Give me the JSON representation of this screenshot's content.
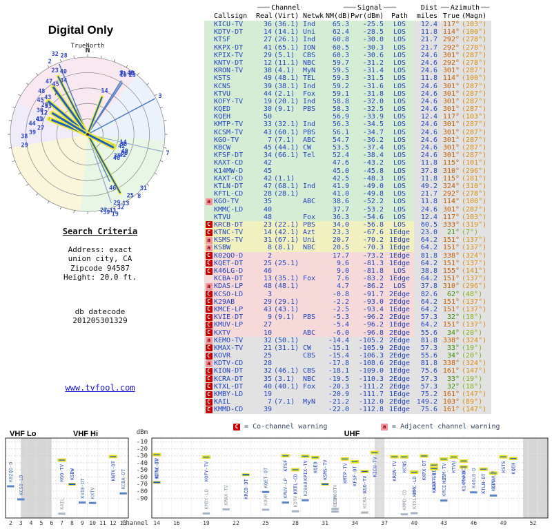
{
  "title": "Digital Only",
  "radar": {
    "true_north": "TrueNorth"
  },
  "criteria": {
    "heading": "Search Criteria",
    "lines": [
      "Address: exact",
      "union city, CA",
      "Zipcode 94587",
      "Height: 20.0 ft."
    ],
    "datecode_label": "db datecode",
    "datecode": "201205301329"
  },
  "link": "www.tvfool.com",
  "legend": {
    "co_badge": "C",
    "co_text": "= Co-channel warning",
    "adj_badge": "a",
    "adj_text": "= Adjacent channel warning"
  },
  "table": {
    "group_channel": "Channel",
    "group_signal": "Signal",
    "group_dist": "Dist",
    "group_azimuth": "Azimuth",
    "deco_l": "━━━",
    "deco_s": "━━",
    "col_callsign": "Callsign",
    "col_real": "Real",
    "col_virt": "(Virt)",
    "col_netwk": "Netwk",
    "col_nm": "NM(dB)",
    "col_pwr": "Pwr(dBm)",
    "col_path": "Path",
    "col_miles": "miles",
    "col_true": "True",
    "col_magn": "(Magn)"
  },
  "colors": {
    "tiers": {
      "green": "#d4edd4",
      "yellow": "#f1f1c0",
      "pink": "#f6d9d9",
      "gray": "#e2e2e2"
    },
    "dist_bg": "#e2e2e2",
    "co": "#c80000",
    "adj": "#f2959b",
    "value_blue": "#2343bd",
    "az_true_orange": "#c45e00",
    "az_magn_orange": "#d89018",
    "az_true_green": "#3f8f00",
    "az_magn_green": "#84b31e"
  },
  "chart_data": [
    {
      "type": "scatter",
      "subtype": "polar-azimuth-radar",
      "title": "Digital Only",
      "north_label": "N",
      "orientation": "TrueNorth",
      "rings": 5,
      "max_miles": 85,
      "radius_encoding": "sqrt(distance miles)",
      "angle_encoding": "true azimuth degrees",
      "label_encoding": "real channel number"
    },
    {
      "type": "table",
      "row_fields": [
        "warning",
        "callsign",
        "real_ch",
        "virtual_ch",
        "network",
        "nm_db",
        "pwr_dbm",
        "path",
        "dist_miles",
        "az_true_deg",
        "az_magn_deg",
        "tier"
      ],
      "rows": [
        [
          "",
          "KICU-TV",
          "36",
          "36.1",
          "Ind",
          65.3,
          -25.5,
          "LOS",
          12.4,
          117,
          103,
          "green"
        ],
        [
          "",
          "KDTV-DT",
          "14",
          "14.1",
          "Uni",
          62.4,
          -28.5,
          "LOS",
          11.8,
          114,
          100,
          "green"
        ],
        [
          "",
          "KTSF",
          "27",
          "26.1",
          "Ind",
          60.8,
          -30.0,
          "LOS",
          21.7,
          292,
          278,
          "green"
        ],
        [
          "",
          "KKPX-DT",
          "41",
          "65.1",
          "ION",
          60.5,
          -30.3,
          "LOS",
          21.7,
          292,
          278,
          "green"
        ],
        [
          "",
          "KPIX-TV",
          "29",
          "5.1",
          "CBS",
          60.3,
          -30.6,
          "LOS",
          24.6,
          301,
          287,
          "green"
        ],
        [
          "",
          "KNTV-DT",
          "12",
          "11.1",
          "NBC",
          59.7,
          -31.2,
          "LOS",
          24.6,
          292,
          278,
          "green"
        ],
        [
          "",
          "KRON-TV",
          "38",
          "4.1",
          "MyN",
          59.5,
          -31.4,
          "LOS",
          24.6,
          301,
          287,
          "green"
        ],
        [
          "",
          "KSTS",
          "49",
          "48.1",
          "TEL",
          59.3,
          -31.5,
          "LOS",
          11.8,
          114,
          100,
          "green"
        ],
        [
          "",
          "KCNS",
          "39",
          "38.1",
          "Ind",
          59.2,
          -31.6,
          "LOS",
          24.6,
          301,
          287,
          "green"
        ],
        [
          "",
          "KTVU",
          "44",
          "2.1",
          "Fox",
          59.1,
          -31.8,
          "LOS",
          24.6,
          301,
          287,
          "green"
        ],
        [
          "",
          "KOFY-TV",
          "19",
          "20.1",
          "Ind",
          58.8,
          -32.0,
          "LOS",
          24.6,
          301,
          287,
          "green"
        ],
        [
          "",
          "KQED",
          "30",
          "9.1",
          "PBS",
          58.3,
          -32.5,
          "LOS",
          24.6,
          301,
          287,
          "green"
        ],
        [
          "",
          "KQEH",
          "50",
          "",
          "",
          56.9,
          -33.9,
          "LOS",
          12.4,
          117,
          103,
          "green"
        ],
        [
          "",
          "KMTP-TV",
          "33",
          "32.1",
          "Ind",
          56.3,
          -34.5,
          "LOS",
          24.6,
          301,
          287,
          "green"
        ],
        [
          "",
          "KCSM-TV",
          "43",
          "60.1",
          "PBS",
          56.1,
          -34.7,
          "LOS",
          24.6,
          301,
          287,
          "green"
        ],
        [
          "",
          "KGO-TV",
          "7",
          "7.1",
          "ABC",
          54.7,
          -36.2,
          "LOS",
          24.6,
          301,
          287,
          "green"
        ],
        [
          "",
          "KBCW",
          "45",
          "44.1",
          "CW",
          53.5,
          -37.4,
          "LOS",
          24.6,
          301,
          287,
          "green"
        ],
        [
          "",
          "KFSF-DT",
          "34",
          "66.1",
          "Tel",
          52.4,
          -38.4,
          "LOS",
          24.6,
          301,
          287,
          "green"
        ],
        [
          "",
          "KAXT-CD",
          "42",
          "",
          "",
          47.6,
          -43.2,
          "LOS",
          11.8,
          115,
          101,
          "green"
        ],
        [
          "",
          "K14MW-D",
          "45",
          "",
          "",
          45.0,
          -45.8,
          "LOS",
          37.8,
          310,
          296,
          "green"
        ],
        [
          "",
          "KAXT-CD",
          "42",
          "1.1",
          "",
          42.5,
          -48.3,
          "LOS",
          11.8,
          115,
          101,
          "green"
        ],
        [
          "",
          "KTLN-DT",
          "47",
          "68.1",
          "Ind",
          41.9,
          -49.0,
          "LOS",
          49.2,
          324,
          310,
          "green"
        ],
        [
          "",
          "KFTL-CD",
          "28",
          "28.1",
          "",
          41.0,
          -49.8,
          "LOS",
          21.7,
          292,
          278,
          "green"
        ],
        [
          "a",
          "KGO-TV",
          "35",
          "",
          "ABC",
          38.6,
          -52.2,
          "LOS",
          11.8,
          114,
          100,
          "green"
        ],
        [
          "",
          "KMMC-LD",
          "40",
          "",
          "",
          37.7,
          -53.2,
          "LOS",
          24.6,
          301,
          287,
          "green"
        ],
        [
          "",
          "KTVU",
          "48",
          "",
          "Fox",
          36.3,
          -54.6,
          "LOS",
          12.4,
          117,
          103,
          "green"
        ],
        [
          "C",
          "KRCB-DT",
          "23",
          "22.1",
          "PBS",
          34.0,
          -56.8,
          "LOS",
          60.5,
          333,
          319,
          "yellow"
        ],
        [
          "C",
          "KTNC-TV",
          "14",
          "42.1",
          "Azt",
          23.3,
          -67.6,
          "1Edge",
          23.0,
          21,
          7,
          "yellow"
        ],
        [
          "a",
          "KSMS-TV",
          "31",
          "67.1",
          "Uni",
          20.7,
          -70.2,
          "1Edge",
          64.2,
          151,
          137,
          "yellow"
        ],
        [
          "a",
          "KSBW",
          "8",
          "8.1",
          "NBC",
          20.5,
          -70.3,
          "1Edge",
          64.2,
          151,
          137,
          "yellow"
        ],
        [
          "C",
          "K02QO-D",
          "2",
          "",
          "",
          17.7,
          -73.2,
          "1Edge",
          81.8,
          338,
          324,
          "pink"
        ],
        [
          "C",
          "KQET-DT",
          "25",
          "25.1",
          "",
          9.6,
          -81.3,
          "1Edge",
          64.2,
          151,
          137,
          "pink"
        ],
        [
          "C",
          "K46LG-D",
          "46",
          "",
          "",
          9.0,
          -81.8,
          "LOS",
          38.8,
          155,
          141,
          "pink"
        ],
        [
          "",
          "KCBA-DT",
          "13",
          "35.1",
          "Fox",
          7.6,
          -83.2,
          "1Edge",
          64.2,
          151,
          137,
          "pink"
        ],
        [
          "a",
          "KDAS-LP",
          "48",
          "48.1",
          "",
          4.7,
          -86.2,
          "LOS",
          37.8,
          310,
          296,
          "pink"
        ],
        [
          "C",
          "KCSO-LD",
          "3",
          "",
          "",
          -0.8,
          -91.7,
          "2Edge",
          82.6,
          62,
          48,
          "pink"
        ],
        [
          "C",
          "K29AB",
          "29",
          "29.1",
          "",
          -2.2,
          -93.0,
          "2Edge",
          64.2,
          151,
          137,
          "pink"
        ],
        [
          "C",
          "KMCE-LP",
          "43",
          "43.1",
          "",
          -2.5,
          -93.4,
          "1Edge",
          64.2,
          151,
          137,
          "pink"
        ],
        [
          "C",
          "KVIE-DT",
          "9",
          "9.1",
          "PBS",
          -5.3,
          -96.2,
          "2Edge",
          57.3,
          32,
          18,
          "pink"
        ],
        [
          "C",
          "KMUV-LP",
          "27",
          "",
          "",
          -5.4,
          -96.2,
          "1Edge",
          64.2,
          151,
          137,
          "pink"
        ],
        [
          "C",
          "KXTV",
          "10",
          "",
          "ABC",
          -6.0,
          -96.8,
          "2Edge",
          55.6,
          34,
          20,
          "pink"
        ],
        [
          "a",
          "KEMO-TV",
          "32",
          "50.1",
          "",
          -14.4,
          -105.2,
          "2Edge",
          81.8,
          338,
          324,
          "gray"
        ],
        [
          "C",
          "KMAX-TV",
          "21",
          "31.1",
          "CW",
          -15.1,
          -105.9,
          "2Edge",
          57.3,
          33,
          19,
          "gray"
        ],
        [
          "C",
          "KOVR",
          "25",
          "",
          "CBS",
          -15.4,
          -106.3,
          "2Edge",
          55.6,
          34,
          20,
          "gray"
        ],
        [
          "a",
          "KDTV-CD",
          "28",
          "",
          "",
          -17.8,
          -108.6,
          "2Edge",
          81.8,
          338,
          324,
          "gray"
        ],
        [
          "C",
          "KION-DT",
          "32",
          "46.1",
          "CBS",
          -18.1,
          -109.0,
          "1Edge",
          75.6,
          161,
          147,
          "gray"
        ],
        [
          "C",
          "KCRA-DT",
          "35",
          "3.1",
          "NBC",
          -19.5,
          -110.3,
          "2Edge",
          57.3,
          33,
          19,
          "gray"
        ],
        [
          "C",
          "KTXL-DT",
          "40",
          "40.1",
          "Fox",
          -20.3,
          -111.2,
          "2Edge",
          57.3,
          32,
          18,
          "gray"
        ],
        [
          "C",
          "KMBY-LD",
          "19",
          "",
          "",
          -20.9,
          -111.7,
          "1Edge",
          75.2,
          161,
          147,
          "gray"
        ],
        [
          "C",
          "KAIL",
          "7",
          "7.1",
          "MyN",
          -21.2,
          -112.0,
          "2Edge",
          149.2,
          103,
          89,
          "gray"
        ],
        [
          "C",
          "KMMD-CD",
          "39",
          "",
          "",
          -22.0,
          -112.8,
          "1Edge",
          75.6,
          161,
          147,
          "gray"
        ]
      ]
    },
    {
      "type": "scatter",
      "subtype": "signal-level-vs-channel",
      "ylabel": "dBm",
      "xlabel": "Channel",
      "yticks": [
        -10,
        -20,
        -30,
        -40,
        -50,
        -60,
        -70,
        -80,
        -90
      ],
      "ylim": [
        -118,
        -5
      ],
      "vhf_channels": [
        2,
        3,
        4,
        5,
        6,
        7,
        8,
        9,
        10,
        11,
        12,
        13
      ],
      "uhf_tick_channels": [
        14,
        16,
        19,
        22,
        25,
        28,
        31,
        34,
        37,
        40,
        43,
        46,
        49,
        52
      ],
      "panel_labels": {
        "vhf_lo": "VHF Lo",
        "vhf_hi": "VHF Hi",
        "uhf": "UHF"
      }
    }
  ]
}
